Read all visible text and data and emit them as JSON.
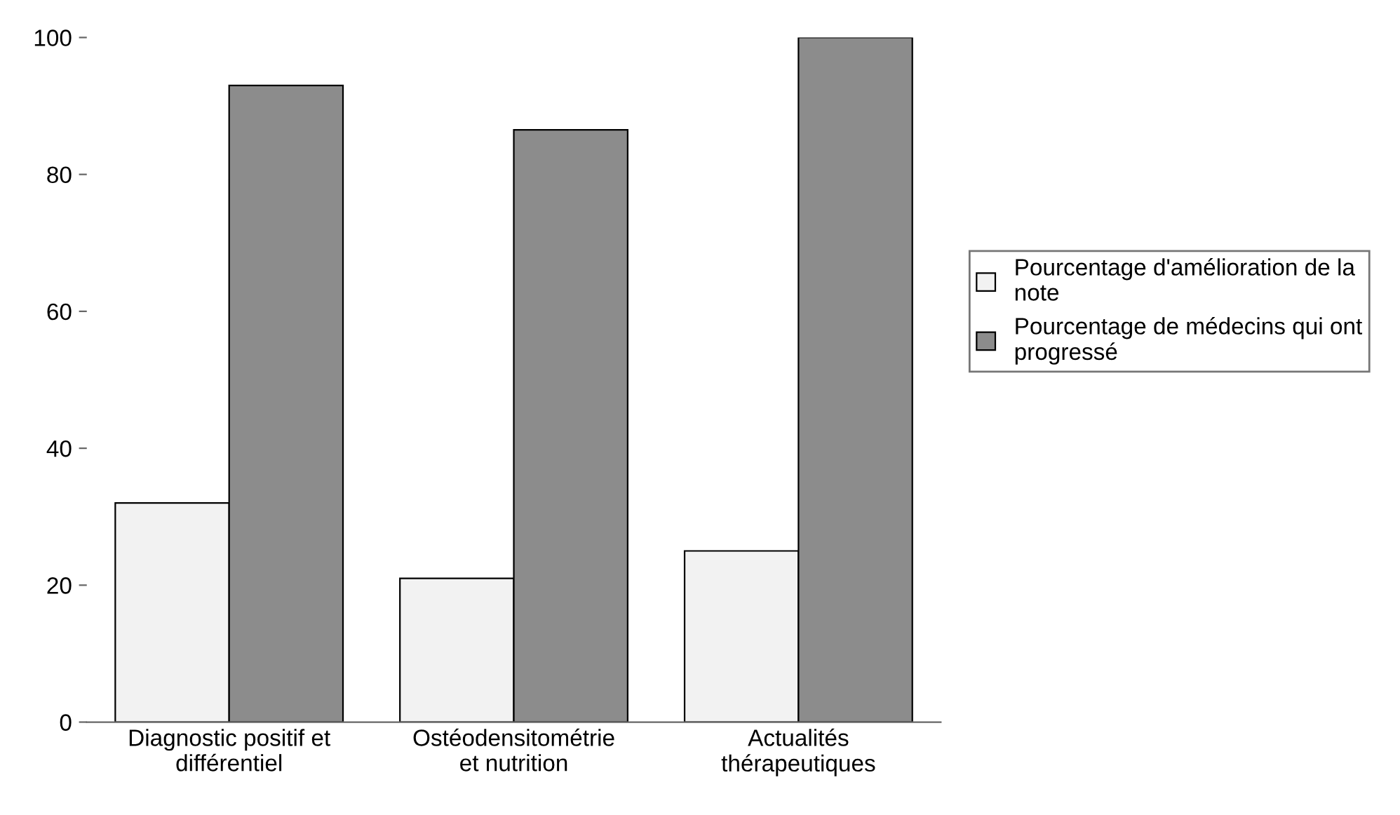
{
  "chart_data": {
    "type": "bar",
    "categories": [
      "Diagnostic positif et\ndifférentiel",
      "Ostéodensitométrie\net nutrition",
      "Actualités\nthérapeutiques"
    ],
    "series": [
      {
        "name": "Pourcentage d'amélioration de la\nnote",
        "color": "#f2f2f2",
        "values": [
          32,
          21,
          25
        ]
      },
      {
        "name": "Pourcentage de médecins qui ont\nprogressé",
        "color": "#8c8c8c",
        "values": [
          93,
          86.5,
          100
        ]
      }
    ],
    "ylim": [
      0,
      100
    ],
    "yticks": [
      0,
      20,
      40,
      60,
      80,
      100
    ],
    "grid": false,
    "legend": "right"
  }
}
